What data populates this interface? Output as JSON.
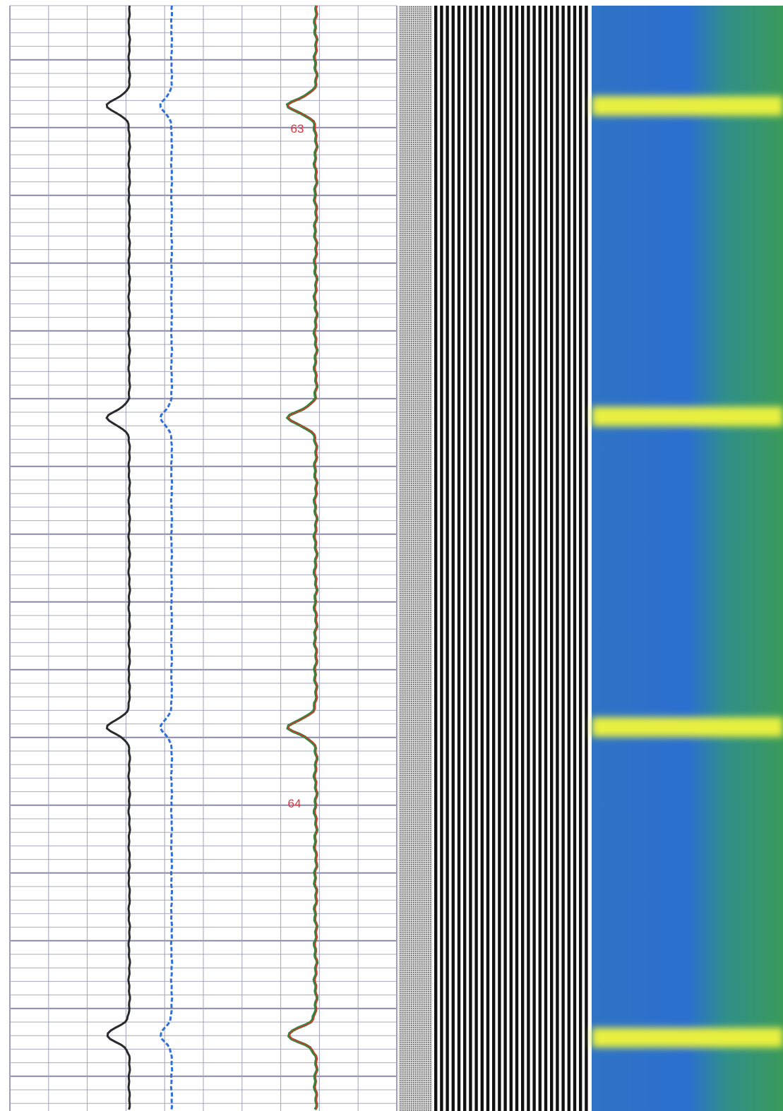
{
  "depth_labels": [
    "63",
    "64"
  ]
}
